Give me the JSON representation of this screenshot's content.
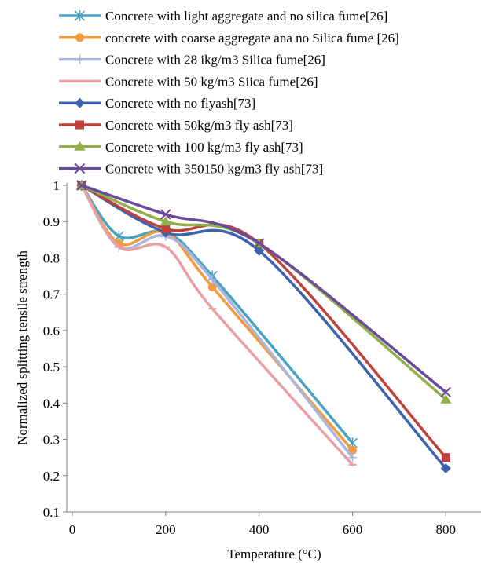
{
  "chart_data": {
    "type": "line",
    "title": "",
    "xlabel": "Temperature (°C)",
    "ylabel": "Normalized splitting tensile strength",
    "xlim": [
      0,
      850
    ],
    "ylim": [
      0.1,
      1.0
    ],
    "x_ticks": [
      "0",
      "200",
      "400",
      "600",
      "800"
    ],
    "x_tick_values": [
      0,
      200,
      400,
      600,
      800
    ],
    "y_ticks": [
      "0.1",
      "0.2",
      "0.3",
      "0.4",
      "0.5",
      "0.6",
      "0.7",
      "0.8",
      "0.9",
      "1"
    ],
    "y_tick_values": [
      0.1,
      0.2,
      0.3,
      0.4,
      0.5,
      0.6,
      0.7,
      0.8,
      0.9,
      1.0
    ],
    "grid": false,
    "legend_position": "top",
    "series": [
      {
        "name": "Concrete with light aggregate and no silica fume[26]",
        "color": "#4aa3c0",
        "marker": "asterisk",
        "x": [
          20,
          100,
          200,
          300,
          600
        ],
        "y": [
          1.0,
          0.86,
          0.87,
          0.75,
          0.29
        ]
      },
      {
        "name": "concrete with coarse aggregate ana no Silica fume [26]",
        "color": "#f59a3c",
        "marker": "circle",
        "x": [
          20,
          100,
          200,
          300,
          600
        ],
        "y": [
          1.0,
          0.84,
          0.87,
          0.72,
          0.27
        ]
      },
      {
        "name": "Concrete with 28 ikg/m3 Silica fume[26]",
        "color": "#a9b6e0",
        "marker": "plus",
        "x": [
          20,
          100,
          200,
          300,
          600
        ],
        "y": [
          1.0,
          0.83,
          0.86,
          0.74,
          0.25
        ]
      },
      {
        "name": "Concrete with 50 kg/m3 Siica fume[26]",
        "color": "#e8a0a0",
        "marker": "dash",
        "x": [
          20,
          100,
          200,
          300,
          600
        ],
        "y": [
          1.0,
          0.83,
          0.83,
          0.66,
          0.23
        ]
      },
      {
        "name": "Concrete with no flyash[73]",
        "color": "#3b63ae",
        "marker": "diamond",
        "x": [
          20,
          200,
          400,
          800
        ],
        "y": [
          1.0,
          0.87,
          0.82,
          0.22
        ]
      },
      {
        "name": "Concrete with 50kg/m3 fly ash[73]",
        "color": "#c0413c",
        "marker": "square",
        "x": [
          20,
          200,
          400,
          800
        ],
        "y": [
          1.0,
          0.88,
          0.84,
          0.25
        ]
      },
      {
        "name": "Concrete with 100 kg/m3 fly ash[73]",
        "color": "#8fb04a",
        "marker": "triangle",
        "x": [
          20,
          200,
          400,
          800
        ],
        "y": [
          1.0,
          0.9,
          0.84,
          0.41
        ]
      },
      {
        "name": "Concrete with 350150 kg/m3 fly ash[73]",
        "color": "#6a4a9c",
        "marker": "x",
        "x": [
          20,
          200,
          400,
          800
        ],
        "y": [
          1.0,
          0.92,
          0.84,
          0.43
        ]
      }
    ]
  }
}
